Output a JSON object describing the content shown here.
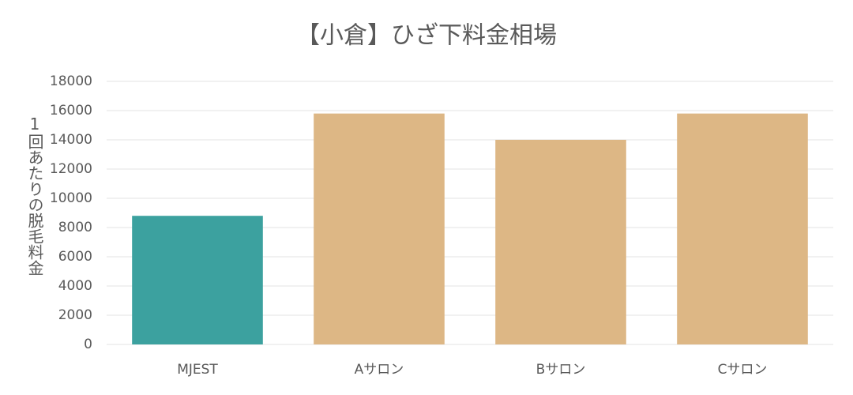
{
  "chart_data": {
    "type": "bar",
    "title": "【小倉】ひざ下料金相場",
    "y_label": "1回あたりの脱毛料金",
    "categories": [
      "MJEST",
      "Aサロン",
      "Bサロン",
      "Cサロン"
    ],
    "values": [
      8800,
      15800,
      14000,
      15800
    ],
    "colors": [
      "#3ca19f",
      "#ddb785",
      "#ddb785",
      "#ddb785"
    ],
    "ylim": [
      0,
      18000
    ],
    "yticks": [
      0,
      2000,
      4000,
      6000,
      8000,
      10000,
      12000,
      14000,
      16000,
      18000
    ],
    "grid": true
  }
}
